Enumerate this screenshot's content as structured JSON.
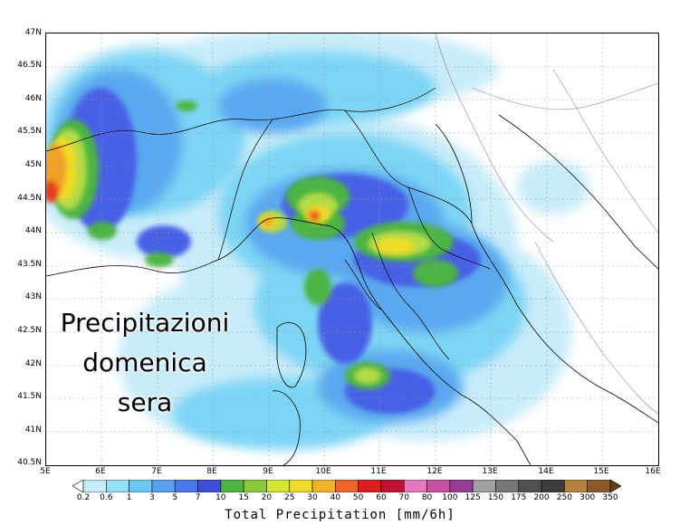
{
  "map": {
    "overlay_text": [
      "Precipitazioni",
      "domenica",
      "sera"
    ],
    "lat_labels": [
      "47N",
      "46.5N",
      "46N",
      "45.5N",
      "45N",
      "44.5N",
      "44N",
      "43.5N",
      "43N",
      "42.5N",
      "42N",
      "41.5N",
      "41N",
      "40.5N"
    ],
    "lon_labels": [
      "5E",
      "6E",
      "7E",
      "8E",
      "9E",
      "10E",
      "11E",
      "12E",
      "13E",
      "14E",
      "15E",
      "16E"
    ],
    "colors": {
      "light_cyan": "#c8ecfa",
      "cyan": "#7dd5f5",
      "light_blue": "#5aa8f0",
      "blue": "#4660e6",
      "mid_blue": "#3c50dc",
      "green": "#4cb442",
      "yellow_green": "#b4dc46",
      "yellow": "#f0dc28",
      "orange": "#f0a028",
      "red": "#e63c1e",
      "border": "#000000",
      "sea_lines": "#1a3cdc"
    }
  },
  "legend": {
    "title": "Total Precipitation [mm/6h]",
    "values": [
      "0.2",
      "0.6",
      "1",
      "3",
      "5",
      "7",
      "10",
      "15",
      "20",
      "25",
      "30",
      "40",
      "50",
      "60",
      "70",
      "80",
      "100",
      "125",
      "150",
      "175",
      "200",
      "250",
      "300",
      "350"
    ],
    "colors": [
      "#ffffff",
      "#c8ecfa",
      "#96e0f8",
      "#6ec8f5",
      "#58a0f0",
      "#4678e8",
      "#3c50dc",
      "#4cb442",
      "#8cc83c",
      "#d2e632",
      "#f0dc28",
      "#f0b428",
      "#f06428",
      "#dc1e1e",
      "#be1432",
      "#e678be",
      "#c850a0",
      "#963c96",
      "#a0a0a0",
      "#787878",
      "#505050",
      "#3c3c3c",
      "#b4823c",
      "#8c5a28",
      "#643c1e"
    ]
  }
}
